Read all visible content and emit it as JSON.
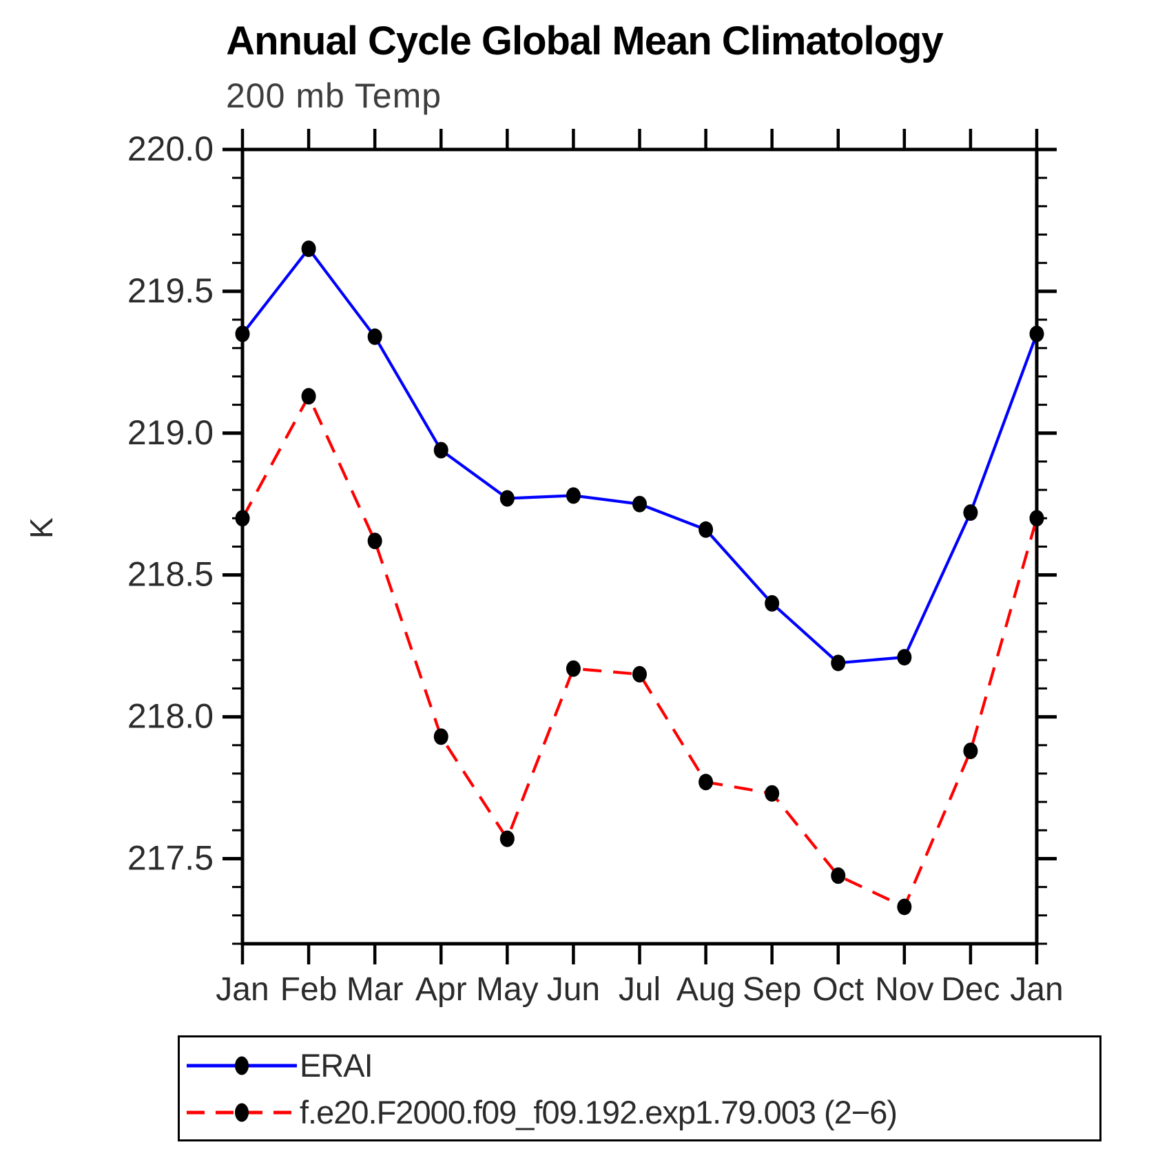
{
  "chart_data": {
    "type": "line",
    "title": "Annual Cycle Global Mean Climatology",
    "subtitle": "200 mb Temp",
    "ylabel": "K",
    "xlabel": "",
    "categories": [
      "Jan",
      "Feb",
      "Mar",
      "Apr",
      "May",
      "Jun",
      "Jul",
      "Aug",
      "Sep",
      "Oct",
      "Nov",
      "Dec",
      "Jan"
    ],
    "ylim": [
      217.2,
      220.0
    ],
    "yticks": [
      {
        "v": 220.0,
        "label": "220.0"
      },
      {
        "v": 219.5,
        "label": "219.5"
      },
      {
        "v": 219.0,
        "label": "219.0"
      },
      {
        "v": 218.5,
        "label": "218.5"
      },
      {
        "v": 218.0,
        "label": "218.0"
      },
      {
        "v": 217.5,
        "label": "217.5"
      }
    ],
    "minor_tick_step": 0.1,
    "grid": false,
    "legend_position": "bottom-left-box",
    "axis_color": "#000000",
    "tick_label_color": "#2b2b2b",
    "series": [
      {
        "name": "ERAI",
        "color": "#0000ff",
        "style": "solid",
        "marker": "filled-circle",
        "marker_color": "#000000",
        "values": [
          219.35,
          219.65,
          219.34,
          218.94,
          218.77,
          218.78,
          218.75,
          218.66,
          218.4,
          218.19,
          218.21,
          218.72,
          219.35
        ]
      },
      {
        "name": "f.e20.F2000.f09_f09.192.exp1.79.003 (2−6)",
        "color": "#ff0000",
        "style": "dashed",
        "marker": "filled-circle",
        "marker_color": "#000000",
        "values": [
          218.7,
          219.13,
          218.62,
          217.93,
          217.57,
          218.17,
          218.15,
          217.77,
          217.73,
          217.44,
          217.33,
          217.88,
          218.7
        ]
      }
    ]
  }
}
